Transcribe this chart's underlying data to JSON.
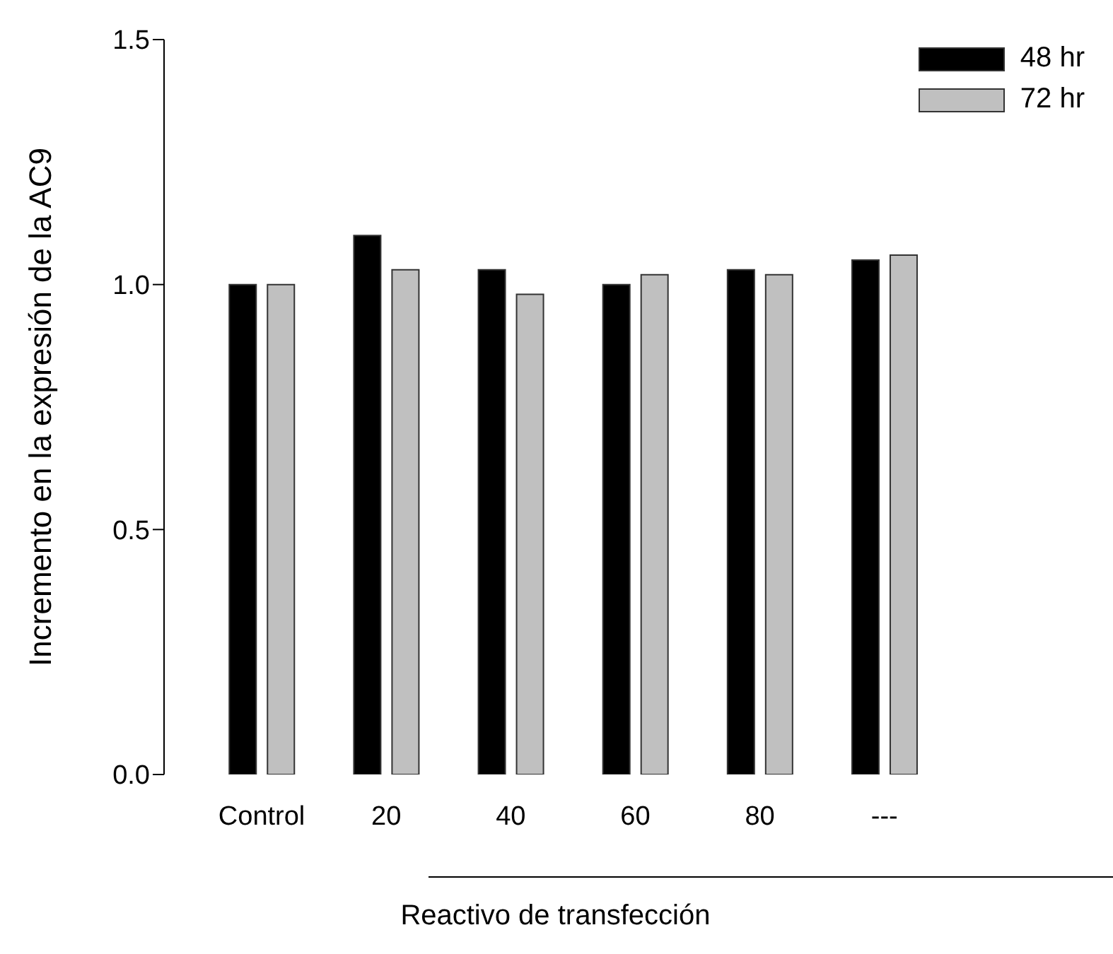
{
  "chart_data": {
    "type": "bar",
    "xlabel": "Reactivo de transfección",
    "ylabel": "Incremento en la expresión de la AC9",
    "categories": [
      "Control",
      "20",
      "40",
      "60",
      "80",
      "---"
    ],
    "series": [
      {
        "name": "48 hr",
        "color": "#000000",
        "values": [
          1.0,
          1.1,
          1.03,
          1.0,
          1.03,
          1.05
        ]
      },
      {
        "name": "72 hr",
        "color": "#c0c0c0",
        "values": [
          1.0,
          1.03,
          0.98,
          1.02,
          1.02,
          1.06
        ]
      }
    ],
    "ylim": [
      0,
      1.5
    ],
    "yticks": [
      {
        "value": 0,
        "label": "0.0"
      },
      {
        "value": 0.5,
        "label": "0.5"
      },
      {
        "value": 1,
        "label": "1.0"
      },
      {
        "value": 1.5,
        "label": "1.5"
      }
    ],
    "grid": false,
    "legend": "top right"
  }
}
